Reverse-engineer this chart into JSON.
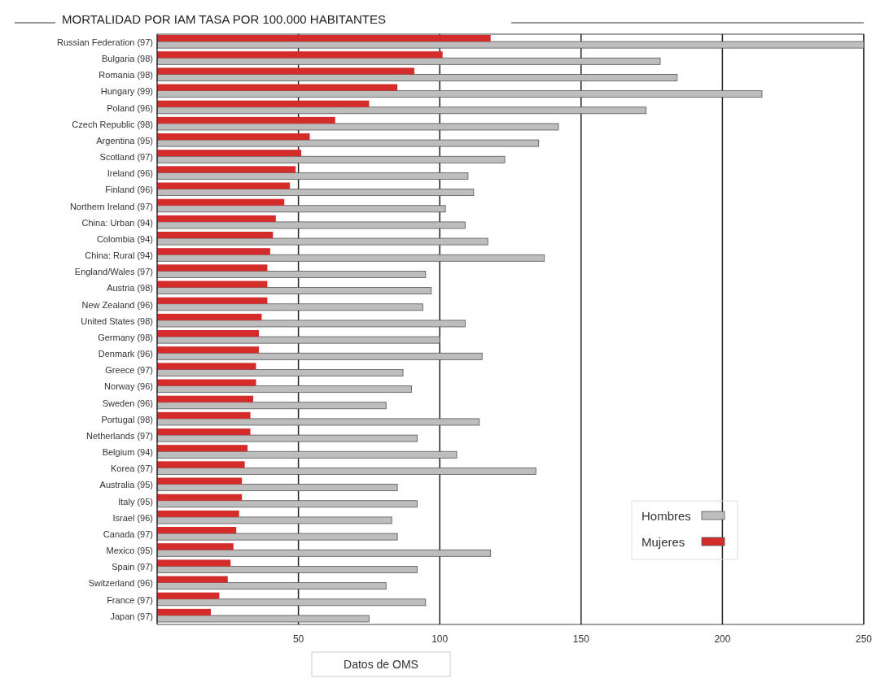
{
  "chart_data": {
    "type": "bar",
    "orientation": "horizontal",
    "title": "MORTALIDAD POR IAM TASA POR 100.000 HABITANTES",
    "categories": [
      "Russian Federation (97)",
      "Bulgaria (98)",
      "Romania (98)",
      "Hungary (99)",
      "Poland (96)",
      "Czech Republic (98)",
      "Argentina (95)",
      "Scotland (97)",
      "Ireland (96)",
      "Finland (96)",
      "Northern Ireland (97)",
      "China: Urban (94)",
      "Colombia (94)",
      "China: Rural (94)",
      "England/Wales (97)",
      "Austria (98)",
      "New Zealand (96)",
      "United States (98)",
      "Germany (98)",
      "Denmark (96)",
      "Greece (97)",
      "Norway (96)",
      "Sweden (96)",
      "Portugal (98)",
      "Netherlands (97)",
      "Belgium (94)",
      "Korea (97)",
      "Australia (95)",
      "Italy (95)",
      "Israel (96)",
      "Canada (97)",
      "Mexico (95)",
      "Spain (97)",
      "Switzerland (96)",
      "France (97)",
      "Japan (97)"
    ],
    "series": [
      {
        "name": "Hombres",
        "color": "#bdbdbd",
        "values": [
          250,
          178,
          184,
          214,
          173,
          142,
          135,
          123,
          110,
          112,
          102,
          109,
          117,
          137,
          95,
          97,
          94,
          109,
          100,
          115,
          87,
          90,
          81,
          114,
          92,
          106,
          134,
          85,
          92,
          83,
          85,
          118,
          92,
          81,
          95,
          75
        ]
      },
      {
        "name": "Mujeres",
        "color": "#d42b2b",
        "values": [
          118,
          101,
          91,
          85,
          75,
          63,
          54,
          51,
          49,
          47,
          45,
          42,
          41,
          40,
          39,
          39,
          39,
          37,
          36,
          36,
          35,
          35,
          34,
          33,
          33,
          32,
          31,
          30,
          30,
          29,
          28,
          27,
          26,
          25,
          22,
          19
        ]
      }
    ],
    "xlim": [
      0,
      250
    ],
    "stacked": false,
    "xticks": [
      50,
      100,
      150,
      200,
      250
    ],
    "grid": "x",
    "legend": "bottom right",
    "annotations": [
      "Datos de OMS"
    ]
  }
}
